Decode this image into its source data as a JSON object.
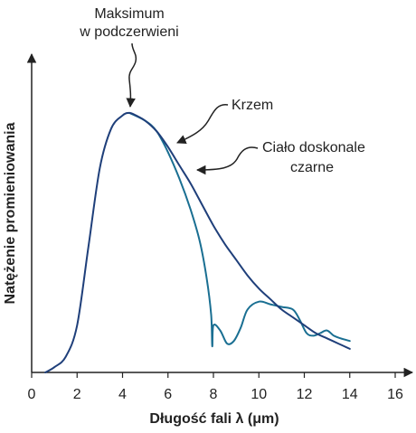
{
  "colors": {
    "blackbody": "#1f3f7a",
    "silicon": "#1a6f92",
    "axis": "#222222",
    "text": "#222222"
  },
  "chart_data": {
    "type": "line",
    "xlabel": "Długość fali λ (μm)",
    "ylabel": "Natężenie promieniowania",
    "xlim": [
      0,
      16
    ],
    "ylim": [
      0,
      1
    ],
    "xticks": [
      0,
      2,
      4,
      6,
      8,
      10,
      12,
      14,
      16
    ],
    "grid": false,
    "y_units": "relative",
    "annotations": [
      {
        "lines": [
          "Maksimum",
          "w podczerwieni"
        ],
        "points_to_x": 4.3
      },
      {
        "lines": [
          "Krzem"
        ],
        "points_to": "silicon",
        "points_to_x": 6.3
      },
      {
        "lines": [
          "Ciało doskonale",
          "czarne"
        ],
        "points_to": "blackbody",
        "points_to_x": 7.3
      }
    ],
    "series": [
      {
        "id": "blackbody",
        "x": [
          0.6,
          1.0,
          1.5,
          2.0,
          2.5,
          3.0,
          3.5,
          4.0,
          4.3,
          4.6,
          5.0,
          5.5,
          6.0,
          6.5,
          7.0,
          7.5,
          8.0,
          8.5,
          9.0,
          9.5,
          10.0,
          10.5,
          11.0,
          11.5,
          12.0,
          12.5,
          13.0,
          13.5,
          14.0
        ],
        "y": [
          0.0,
          0.02,
          0.06,
          0.18,
          0.48,
          0.78,
          0.93,
          0.98,
          0.99,
          0.98,
          0.96,
          0.92,
          0.86,
          0.79,
          0.72,
          0.64,
          0.56,
          0.49,
          0.43,
          0.37,
          0.32,
          0.28,
          0.24,
          0.21,
          0.18,
          0.15,
          0.13,
          0.11,
          0.09
        ]
      },
      {
        "id": "silicon",
        "x": [
          4.3,
          5.0,
          5.5,
          6.0,
          6.5,
          7.0,
          7.4,
          7.7,
          7.9,
          7.95,
          8.0,
          8.3,
          8.6,
          8.9,
          9.2,
          9.5,
          10.0,
          10.5,
          11.0,
          11.5,
          11.8,
          12.1,
          12.4,
          12.7,
          13.0,
          13.3,
          13.6,
          14.0
        ],
        "y": [
          0.99,
          0.96,
          0.92,
          0.84,
          0.74,
          0.62,
          0.5,
          0.36,
          0.22,
          0.1,
          0.18,
          0.16,
          0.11,
          0.12,
          0.17,
          0.24,
          0.27,
          0.26,
          0.25,
          0.24,
          0.2,
          0.15,
          0.14,
          0.15,
          0.16,
          0.14,
          0.13,
          0.12
        ]
      }
    ]
  }
}
